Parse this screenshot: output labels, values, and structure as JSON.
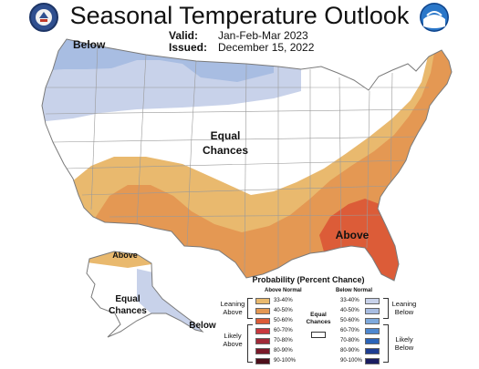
{
  "title": "Seasonal Temperature Outlook",
  "valid": {
    "label": "Valid:",
    "value": "Jan-Feb-Mar 2023"
  },
  "issued": {
    "label": "Issued:",
    "value": "December 15, 2022"
  },
  "map_labels": {
    "below_nw": "Below",
    "equal_chances": [
      "Equal",
      "Chances"
    ],
    "above_se": "Above",
    "ak_above": "Above",
    "ak_equal": [
      "Equal",
      "Chances"
    ],
    "ak_below": "Below"
  },
  "legend": {
    "title": "Probability (Percent Chance)",
    "above_header": "Above Normal",
    "below_header": "Below Normal",
    "ranges": [
      "33-40%",
      "40-50%",
      "50-60%",
      "60-70%",
      "70-80%",
      "80-90%",
      "90-100%"
    ],
    "above_colors": [
      "#e9b96e",
      "#e49853",
      "#dc5c38",
      "#c8383e",
      "#a02a38",
      "#7a1a2a",
      "#4d0f1b"
    ],
    "below_colors": [
      "#c8d2ea",
      "#a8bde2",
      "#7ea9dc",
      "#4e87cf",
      "#2c64b8",
      "#1f3e91",
      "#1a1e61"
    ],
    "leaning_above": [
      "Leaning",
      "Above"
    ],
    "likely_above": [
      "Likely",
      "Above"
    ],
    "leaning_below": [
      "Leaning",
      "Below"
    ],
    "likely_below": [
      "Likely",
      "Below"
    ],
    "equal_chances": [
      "Equal",
      "Chances"
    ]
  },
  "colors": {
    "outline": "#7a7a7a",
    "state_lines": "#9a9a9a"
  }
}
